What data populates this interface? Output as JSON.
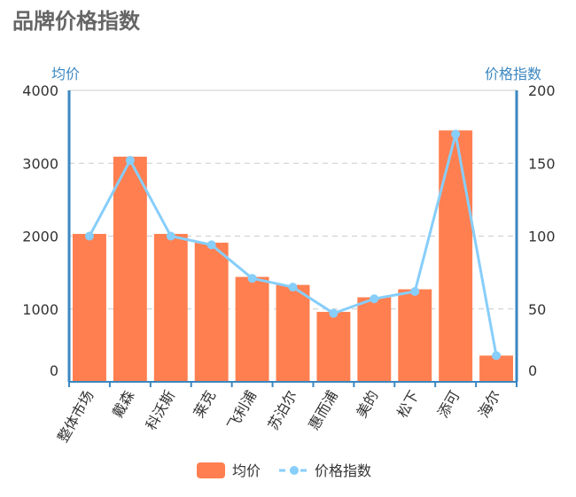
{
  "chart_data": {
    "type": "bar",
    "title": "品牌价格指数",
    "categories": [
      "整体市场",
      "戴森",
      "科沃斯",
      "莱克",
      "飞利浦",
      "苏泊尔",
      "惠而浦",
      "美的",
      "松下",
      "添可",
      "海尔"
    ],
    "series": [
      {
        "name": "均价",
        "type": "bar",
        "axis": "left",
        "color": "#ff7f50",
        "values": [
          2030,
          3090,
          2030,
          1910,
          1440,
          1330,
          960,
          1160,
          1270,
          3450,
          360
        ]
      },
      {
        "name": "价格指数",
        "type": "line",
        "axis": "right",
        "color": "#87cefa",
        "values": [
          100,
          152,
          100,
          94,
          71,
          65,
          47,
          57,
          62,
          170,
          18
        ]
      }
    ],
    "ylabel_left": "均价",
    "ylabel_right": "价格指数",
    "ylim_left": [
      0,
      4000
    ],
    "ylim_right": [
      0,
      200
    ],
    "yticks_left": [
      "0",
      "1000",
      "2000",
      "3000",
      "4000"
    ],
    "yticks_right": [
      "0",
      "50",
      "100",
      "150",
      "200"
    ],
    "grid": true,
    "legend_position": "bottom-center"
  }
}
